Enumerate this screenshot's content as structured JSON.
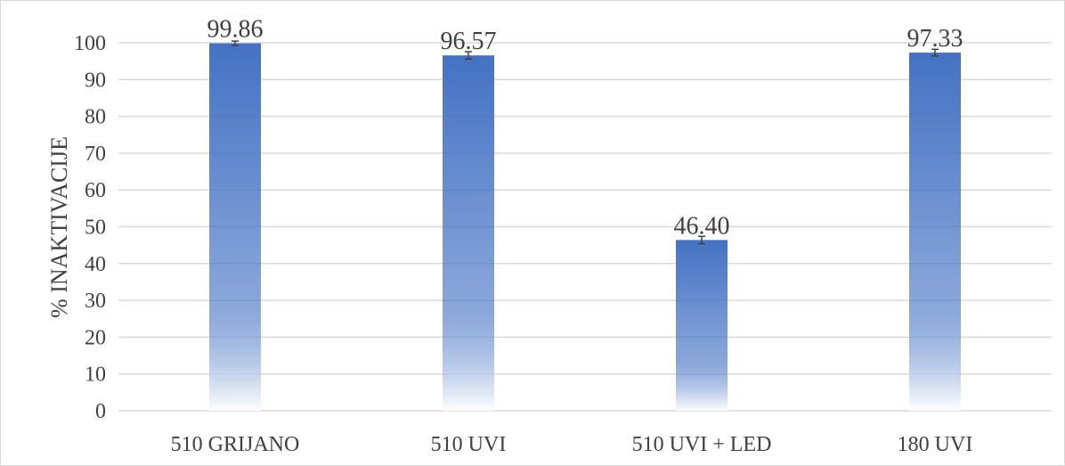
{
  "chart_data": {
    "type": "bar",
    "categories": [
      "510 GRIJANO",
      "510 UVI",
      "510 UVI + LED",
      "180 UVI"
    ],
    "values": [
      99.86,
      96.57,
      46.4,
      97.33
    ],
    "value_labels": [
      "99.86",
      "96.57",
      "46.40",
      "97.33"
    ],
    "error": [
      0.6,
      1.0,
      1.0,
      0.9
    ],
    "title": "",
    "xlabel": "",
    "ylabel": "% INAKTIVACIJE",
    "ylim": [
      0,
      100
    ],
    "yticks": [
      0,
      10,
      20,
      30,
      40,
      50,
      60,
      70,
      80,
      90,
      100
    ],
    "grid": true,
    "legend": "none",
    "colors": {
      "bar": "#4472c4",
      "bar_fade": "#ffffff",
      "grid": "#d9d9d9",
      "text": "#404040",
      "error": "#404040"
    }
  }
}
